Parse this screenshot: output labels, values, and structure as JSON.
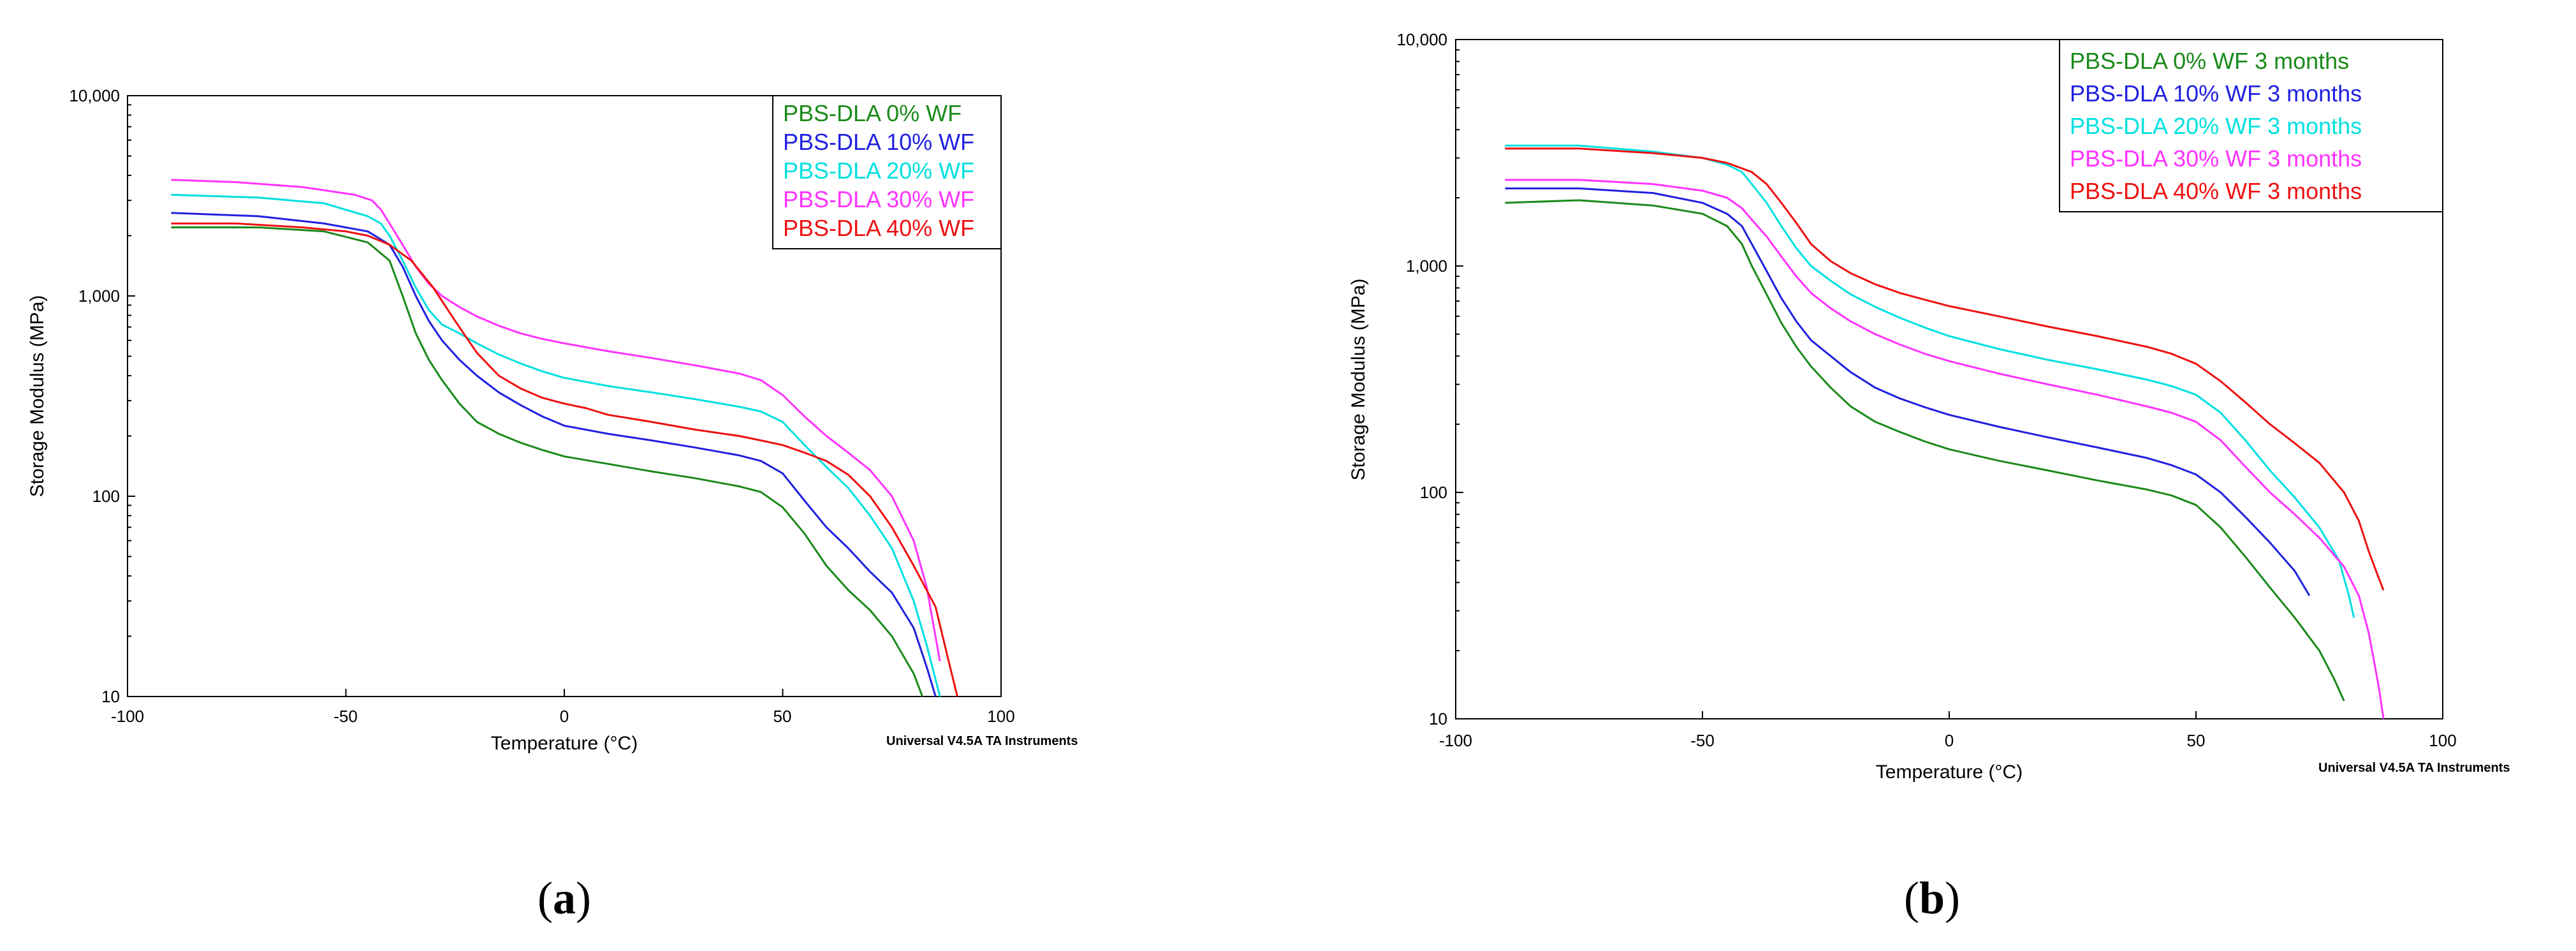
{
  "chart_data": [
    {
      "type": "line",
      "panel_label": {
        "open": "(",
        "letter": "a",
        "close": ")"
      },
      "xlabel": "Temperature (°C)",
      "ylabel": "Storage Modulus (MPa)",
      "xlim": [
        -100,
        100
      ],
      "ylim": [
        10,
        10000
      ],
      "yscale": "log",
      "xticks": [
        -100,
        -50,
        0,
        50,
        100
      ],
      "xtick_labels": [
        "-100",
        "-50",
        "0",
        "50",
        "100"
      ],
      "yticks": [
        10,
        100,
        1000,
        10000
      ],
      "ytick_labels": [
        "10",
        "100",
        "1,000",
        "10,000"
      ],
      "credit": "Universal V4.5A TA Instruments",
      "legend_position": "top-right",
      "series": [
        {
          "name": "PBS-DLA 0% WF",
          "color": "#1a8a1a",
          "x": [
            -90,
            -70,
            -55,
            -45,
            -40,
            -37,
            -34,
            -31,
            -28,
            -24,
            -20,
            -15,
            -10,
            -5,
            0,
            10,
            20,
            30,
            40,
            45,
            50,
            55,
            60,
            65,
            70,
            75,
            80,
            82
          ],
          "y": [
            2200,
            2200,
            2100,
            1850,
            1500,
            1000,
            650,
            480,
            380,
            290,
            235,
            205,
            185,
            170,
            158,
            145,
            133,
            123,
            112,
            105,
            88,
            65,
            45,
            34,
            27,
            20,
            13,
            10
          ]
        },
        {
          "name": "PBS-DLA 10% WF",
          "color": "#2020e0",
          "x": [
            -90,
            -70,
            -55,
            -45,
            -40,
            -37,
            -34,
            -31,
            -28,
            -24,
            -20,
            -15,
            -10,
            -5,
            0,
            10,
            20,
            30,
            40,
            45,
            50,
            55,
            60,
            65,
            70,
            75,
            80,
            83,
            85
          ],
          "y": [
            2600,
            2500,
            2300,
            2100,
            1800,
            1400,
            1000,
            750,
            600,
            480,
            400,
            330,
            285,
            250,
            225,
            205,
            190,
            175,
            160,
            150,
            130,
            95,
            70,
            55,
            42,
            33,
            22,
            14,
            10
          ]
        },
        {
          "name": "PBS-DLA 20% WF",
          "color": "#00e0e0",
          "x": [
            -90,
            -70,
            -55,
            -45,
            -42,
            -40,
            -37,
            -34,
            -31,
            -28,
            -24,
            -20,
            -15,
            -10,
            -5,
            0,
            10,
            20,
            30,
            40,
            45,
            50,
            55,
            60,
            65,
            70,
            75,
            80,
            83,
            86
          ],
          "y": [
            3200,
            3100,
            2900,
            2500,
            2300,
            2000,
            1500,
            1100,
            850,
            720,
            650,
            580,
            510,
            460,
            420,
            390,
            355,
            330,
            305,
            280,
            265,
            235,
            180,
            140,
            110,
            80,
            55,
            30,
            18,
            10
          ]
        },
        {
          "name": "PBS-DLA 30% WF",
          "color": "#ff33ff",
          "x": [
            -90,
            -75,
            -60,
            -48,
            -44,
            -42,
            -40,
            -37,
            -34,
            -31,
            -28,
            -24,
            -20,
            -15,
            -10,
            -5,
            0,
            10,
            20,
            30,
            40,
            45,
            50,
            55,
            60,
            65,
            70,
            75,
            80,
            83,
            86
          ],
          "y": [
            3800,
            3700,
            3500,
            3200,
            3000,
            2700,
            2300,
            1800,
            1400,
            1150,
            1000,
            880,
            790,
            710,
            650,
            610,
            580,
            530,
            490,
            450,
            410,
            380,
            320,
            250,
            200,
            165,
            135,
            100,
            60,
            35,
            15
          ]
        },
        {
          "name": "PBS-DLA 40% WF",
          "color": "#ee1111",
          "x": [
            -90,
            -75,
            -60,
            -50,
            -45,
            -40,
            -35,
            -30,
            -25,
            -20,
            -15,
            -10,
            -5,
            0,
            5,
            10,
            20,
            30,
            40,
            45,
            50,
            55,
            60,
            65,
            70,
            75,
            80,
            85,
            88,
            90
          ],
          "y": [
            2300,
            2300,
            2200,
            2100,
            2000,
            1800,
            1500,
            1100,
            750,
            520,
            400,
            345,
            310,
            290,
            275,
            255,
            235,
            215,
            200,
            190,
            180,
            165,
            150,
            128,
            100,
            70,
            45,
            28,
            15,
            10
          ]
        }
      ]
    },
    {
      "type": "line",
      "panel_label": {
        "open": "(",
        "letter": "b",
        "close": ")"
      },
      "xlabel": "Temperature (°C)",
      "ylabel": "Storage Modulus (MPa)",
      "xlim": [
        -100,
        100
      ],
      "ylim": [
        10,
        10000
      ],
      "yscale": "log",
      "xticks": [
        -100,
        -50,
        0,
        50,
        100
      ],
      "xtick_labels": [
        "-100",
        "-50",
        "0",
        "50",
        "100"
      ],
      "yticks": [
        10,
        100,
        1000,
        10000
      ],
      "ytick_labels": [
        "10",
        "100",
        "1,000",
        "10,000"
      ],
      "credit": "Universal V4.5A TA Instruments",
      "legend_position": "top-right",
      "series": [
        {
          "name": "PBS-DLA 0% WF 3 months",
          "color": "#1a8a1a",
          "x": [
            -90,
            -75,
            -60,
            -50,
            -45,
            -42,
            -40,
            -37,
            -34,
            -31,
            -28,
            -24,
            -20,
            -15,
            -10,
            -5,
            0,
            10,
            20,
            30,
            40,
            45,
            50,
            55,
            60,
            65,
            70,
            75,
            78,
            80
          ],
          "y": [
            1900,
            1950,
            1850,
            1700,
            1500,
            1250,
            1000,
            750,
            560,
            440,
            360,
            290,
            240,
            205,
            185,
            168,
            155,
            138,
            125,
            113,
            103,
            97,
            88,
            70,
            52,
            38,
            28,
            20,
            15,
            12
          ]
        },
        {
          "name": "PBS-DLA 10% WF 3 months",
          "color": "#2020e0",
          "x": [
            -90,
            -75,
            -60,
            -50,
            -45,
            -42,
            -40,
            -37,
            -34,
            -31,
            -28,
            -24,
            -20,
            -15,
            -10,
            -5,
            0,
            10,
            20,
            30,
            40,
            45,
            50,
            55,
            60,
            65,
            70,
            73
          ],
          "y": [
            2200,
            2200,
            2100,
            1900,
            1700,
            1500,
            1250,
            950,
            720,
            570,
            470,
            400,
            340,
            290,
            260,
            238,
            220,
            195,
            175,
            158,
            142,
            132,
            120,
            100,
            78,
            60,
            45,
            35
          ]
        },
        {
          "name": "PBS-DLA 20% WF 3 months",
          "color": "#00e0e0",
          "x": [
            -90,
            -75,
            -60,
            -50,
            -45,
            -42,
            -40,
            -37,
            -34,
            -31,
            -28,
            -24,
            -20,
            -15,
            -10,
            -5,
            0,
            10,
            20,
            30,
            40,
            45,
            50,
            55,
            60,
            65,
            70,
            75,
            79,
            81,
            82
          ],
          "y": [
            3400,
            3400,
            3200,
            3000,
            2800,
            2600,
            2300,
            1900,
            1500,
            1200,
            1000,
            860,
            750,
            660,
            590,
            535,
            490,
            430,
            385,
            350,
            315,
            295,
            270,
            225,
            170,
            125,
            95,
            70,
            50,
            35,
            28
          ]
        },
        {
          "name": "PBS-DLA 30% WF 3 months",
          "color": "#ff33ff",
          "x": [
            -90,
            -75,
            -60,
            -50,
            -45,
            -42,
            -40,
            -37,
            -34,
            -31,
            -28,
            -24,
            -20,
            -15,
            -10,
            -5,
            0,
            10,
            20,
            30,
            40,
            45,
            50,
            55,
            60,
            65,
            70,
            75,
            80,
            83,
            85,
            87,
            88
          ],
          "y": [
            2400,
            2400,
            2300,
            2150,
            2000,
            1800,
            1600,
            1350,
            1100,
            900,
            760,
            650,
            570,
            500,
            450,
            410,
            380,
            335,
            300,
            270,
            240,
            225,
            205,
            170,
            130,
            100,
            80,
            63,
            47,
            35,
            24,
            14,
            10
          ]
        },
        {
          "name": "PBS-DLA 40% WF 3 months",
          "color": "#ee1111",
          "x": [
            -90,
            -75,
            -60,
            -50,
            -45,
            -40,
            -37,
            -34,
            -31,
            -28,
            -24,
            -20,
            -15,
            -10,
            -5,
            0,
            10,
            20,
            30,
            40,
            45,
            50,
            55,
            60,
            65,
            70,
            75,
            80,
            83,
            85,
            87,
            88
          ],
          "y": [
            3300,
            3300,
            3150,
            3000,
            2850,
            2600,
            2300,
            1900,
            1550,
            1250,
            1050,
            930,
            830,
            760,
            710,
            665,
            600,
            540,
            490,
            440,
            410,
            370,
            310,
            250,
            200,
            165,
            135,
            100,
            75,
            55,
            42,
            37
          ]
        }
      ]
    }
  ]
}
